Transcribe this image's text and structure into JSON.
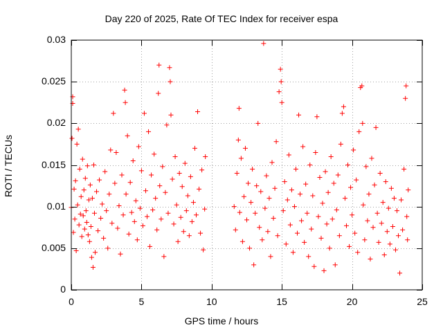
{
  "chart_data": {
    "type": "scatter",
    "title": "Day 220 of 2025, Rate Of TEC Index for receiver espa",
    "xlabel": "GPS time / hours",
    "ylabel": "ROTI / TECUs",
    "xlim": [
      0,
      25
    ],
    "ylim": [
      0,
      0.03
    ],
    "xticks": [
      0,
      5,
      10,
      15,
      20,
      25
    ],
    "xtick_labels": [
      "0",
      "5",
      "10",
      "15",
      "20",
      "25"
    ],
    "yticks": [
      0,
      0.005,
      0.01,
      0.015,
      0.02,
      0.025,
      0.03
    ],
    "ytick_labels": [
      "0",
      "0.005",
      "0.01",
      "0.015",
      "0.02",
      "0.025",
      "0.03"
    ],
    "grid": true,
    "marker": "+",
    "color": "#ff0000",
    "series": [
      {
        "name": "ROTI",
        "points": [
          [
            0.0,
            0.0099
          ],
          [
            0.05,
            0.0182
          ],
          [
            0.1,
            0.0232
          ],
          [
            0.1,
            0.0224
          ],
          [
            0.15,
            0.0069
          ],
          [
            0.2,
            0.0121
          ],
          [
            0.25,
            0.0085
          ],
          [
            0.3,
            0.0131
          ],
          [
            0.35,
            0.0047
          ],
          [
            0.4,
            0.0175
          ],
          [
            0.45,
            0.0102
          ],
          [
            0.5,
            0.0193
          ],
          [
            0.55,
            0.0078
          ],
          [
            0.6,
            0.0145
          ],
          [
            0.65,
            0.0091
          ],
          [
            0.7,
            0.0112
          ],
          [
            0.75,
            0.0064
          ],
          [
            0.8,
            0.0157
          ],
          [
            0.85,
            0.0089
          ],
          [
            0.9,
            0.012
          ],
          [
            0.95,
            0.0073
          ],
          [
            1.0,
            0.0134
          ],
          [
            1.05,
            0.0095
          ],
          [
            1.1,
            0.0081
          ],
          [
            1.15,
            0.0149
          ],
          [
            1.2,
            0.0066
          ],
          [
            1.25,
            0.0108
          ],
          [
            1.3,
            0.0058
          ],
          [
            1.35,
            0.0126
          ],
          [
            1.4,
            0.0076
          ],
          [
            1.45,
            0.0039
          ],
          [
            1.5,
            0.011
          ],
          [
            1.55,
            0.0027
          ],
          [
            1.6,
            0.015
          ],
          [
            1.65,
            0.0092
          ],
          [
            1.7,
            0.0045
          ],
          [
            1.8,
            0.0118
          ],
          [
            1.9,
            0.0071
          ],
          [
            2.0,
            0.0132
          ],
          [
            2.1,
            0.0086
          ],
          [
            2.2,
            0.0103
          ],
          [
            2.3,
            0.0062
          ],
          [
            2.4,
            0.0142
          ],
          [
            2.5,
            0.0095
          ],
          [
            2.6,
            0.005
          ],
          [
            2.7,
            0.0115
          ],
          [
            2.8,
            0.0168
          ],
          [
            2.9,
            0.008
          ],
          [
            3.0,
            0.0212
          ],
          [
            3.1,
            0.0128
          ],
          [
            3.2,
            0.0165
          ],
          [
            3.3,
            0.0074
          ],
          [
            3.4,
            0.0101
          ],
          [
            3.5,
            0.0043
          ],
          [
            3.6,
            0.0138
          ],
          [
            3.7,
            0.009
          ],
          [
            3.8,
            0.024
          ],
          [
            3.85,
            0.0225
          ],
          [
            3.9,
            0.0115
          ],
          [
            4.0,
            0.0185
          ],
          [
            4.1,
            0.0067
          ],
          [
            4.2,
            0.0129
          ],
          [
            4.3,
            0.0093
          ],
          [
            4.4,
            0.0155
          ],
          [
            4.5,
            0.0082
          ],
          [
            4.6,
            0.0107
          ],
          [
            4.7,
            0.006
          ],
          [
            4.8,
            0.0172
          ],
          [
            4.9,
            0.0098
          ],
          [
            5.0,
            0.0143
          ],
          [
            5.1,
            0.0077
          ],
          [
            5.2,
            0.0212
          ],
          [
            5.3,
            0.0119
          ],
          [
            5.4,
            0.0088
          ],
          [
            5.5,
            0.019
          ],
          [
            5.6,
            0.0052
          ],
          [
            5.7,
            0.0138
          ],
          [
            5.8,
            0.0096
          ],
          [
            5.9,
            0.0163
          ],
          [
            6.0,
            0.011
          ],
          [
            6.1,
            0.0072
          ],
          [
            6.2,
            0.0236
          ],
          [
            6.25,
            0.027
          ],
          [
            6.3,
            0.0125
          ],
          [
            6.4,
            0.0085
          ],
          [
            6.5,
            0.0148
          ],
          [
            6.6,
            0.004
          ],
          [
            6.7,
            0.0117
          ],
          [
            6.8,
            0.0198
          ],
          [
            6.9,
            0.0092
          ],
          [
            7.0,
            0.0267
          ],
          [
            7.05,
            0.025
          ],
          [
            7.1,
            0.021
          ],
          [
            7.2,
            0.0133
          ],
          [
            7.3,
            0.0079
          ],
          [
            7.4,
            0.016
          ],
          [
            7.5,
            0.0102
          ],
          [
            7.6,
            0.0058
          ],
          [
            7.7,
            0.014
          ],
          [
            7.8,
            0.0087
          ],
          [
            7.9,
            0.0124
          ],
          [
            8.0,
            0.007
          ],
          [
            8.1,
            0.0152
          ],
          [
            8.2,
            0.0095
          ],
          [
            8.3,
            0.0113
          ],
          [
            8.4,
            0.0065
          ],
          [
            8.5,
            0.0136
          ],
          [
            8.6,
            0.0082
          ],
          [
            8.7,
            0.0105
          ],
          [
            8.8,
            0.017
          ],
          [
            8.9,
            0.009
          ],
          [
            9.0,
            0.0214
          ],
          [
            9.1,
            0.0121
          ],
          [
            9.2,
            0.0068
          ],
          [
            9.3,
            0.0144
          ],
          [
            9.4,
            0.0048
          ],
          [
            9.5,
            0.0097
          ],
          [
            9.55,
            0.016
          ],
          [
            11.6,
            0.01
          ],
          [
            11.7,
            0.0072
          ],
          [
            11.8,
            0.014
          ],
          [
            11.9,
            0.018
          ],
          [
            11.95,
            0.0218
          ],
          [
            12.0,
            0.0093
          ],
          [
            12.1,
            0.0158
          ],
          [
            12.2,
            0.0058
          ],
          [
            12.3,
            0.0112
          ],
          [
            12.4,
            0.017
          ],
          [
            12.5,
            0.0084
          ],
          [
            12.6,
            0.0128
          ],
          [
            12.7,
            0.005
          ],
          [
            12.8,
            0.0105
          ],
          [
            12.9,
            0.0145
          ],
          [
            13.0,
            0.003
          ],
          [
            13.1,
            0.0092
          ],
          [
            13.2,
            0.0125
          ],
          [
            13.3,
            0.02
          ],
          [
            13.4,
            0.0075
          ],
          [
            13.5,
            0.0118
          ],
          [
            13.6,
            0.006
          ],
          [
            13.7,
            0.0296
          ],
          [
            13.8,
            0.0098
          ],
          [
            13.9,
            0.0137
          ],
          [
            14.0,
            0.007
          ],
          [
            14.1,
            0.011
          ],
          [
            14.2,
            0.004
          ],
          [
            14.3,
            0.0153
          ],
          [
            14.4,
            0.0086
          ],
          [
            14.5,
            0.0122
          ],
          [
            14.6,
            0.0178
          ],
          [
            14.7,
            0.0065
          ],
          [
            14.8,
            0.0238
          ],
          [
            14.9,
            0.0265
          ],
          [
            14.95,
            0.025
          ],
          [
            15.0,
            0.0225
          ],
          [
            15.1,
            0.0095
          ],
          [
            15.2,
            0.013
          ],
          [
            15.3,
            0.0055
          ],
          [
            15.4,
            0.0108
          ],
          [
            15.5,
            0.0162
          ],
          [
            15.6,
            0.0078
          ],
          [
            15.7,
            0.012
          ],
          [
            15.8,
            0.0045
          ],
          [
            15.9,
            0.01
          ],
          [
            16.0,
            0.0145
          ],
          [
            16.1,
            0.0068
          ],
          [
            16.2,
            0.021
          ],
          [
            16.3,
            0.0115
          ],
          [
            16.4,
            0.0083
          ],
          [
            16.5,
            0.0172
          ],
          [
            16.6,
            0.0057
          ],
          [
            16.7,
            0.0127
          ],
          [
            16.8,
            0.0092
          ],
          [
            16.9,
            0.004
          ],
          [
            17.0,
            0.015
          ],
          [
            17.1,
            0.0073
          ],
          [
            17.2,
            0.0113
          ],
          [
            17.3,
            0.0028
          ],
          [
            17.4,
            0.0165
          ],
          [
            17.5,
            0.0208
          ],
          [
            17.6,
            0.0088
          ],
          [
            17.7,
            0.0135
          ],
          [
            17.8,
            0.0062
          ],
          [
            17.9,
            0.0104
          ],
          [
            18.0,
            0.0023
          ],
          [
            18.1,
            0.0142
          ],
          [
            18.2,
            0.0079
          ],
          [
            18.3,
            0.0117
          ],
          [
            18.4,
            0.005
          ],
          [
            18.5,
            0.016
          ],
          [
            18.6,
            0.0085
          ],
          [
            18.7,
            0.0128
          ],
          [
            18.8,
            0.003
          ],
          [
            18.9,
            0.0096
          ],
          [
            19.0,
            0.0138
          ],
          [
            19.1,
            0.0065
          ],
          [
            19.2,
            0.0175
          ],
          [
            19.3,
            0.0212
          ],
          [
            19.4,
            0.022
          ],
          [
            19.5,
            0.011
          ],
          [
            19.6,
            0.0077
          ],
          [
            19.7,
            0.015
          ],
          [
            19.8,
            0.0052
          ],
          [
            19.9,
            0.0123
          ],
          [
            20.0,
            0.009
          ],
          [
            20.1,
            0.0168
          ],
          [
            20.2,
            0.0068
          ],
          [
            20.3,
            0.0132
          ],
          [
            20.4,
            0.0045
          ],
          [
            20.5,
            0.019
          ],
          [
            20.6,
            0.0243
          ],
          [
            20.7,
            0.0245
          ],
          [
            20.75,
            0.02
          ],
          [
            20.8,
            0.0102
          ],
          [
            20.9,
            0.006
          ],
          [
            21.0,
            0.0148
          ],
          [
            21.1,
            0.0083
          ],
          [
            21.2,
            0.0115
          ],
          [
            21.3,
            0.0037
          ],
          [
            21.4,
            0.0158
          ],
          [
            21.5,
            0.0075
          ],
          [
            21.6,
            0.0126
          ],
          [
            21.7,
            0.0195
          ],
          [
            21.8,
            0.0092
          ],
          [
            21.9,
            0.0057
          ],
          [
            22.0,
            0.014
          ],
          [
            22.1,
            0.008
          ],
          [
            22.2,
            0.0105
          ],
          [
            22.3,
            0.0042
          ],
          [
            22.4,
            0.013
          ],
          [
            22.5,
            0.007
          ],
          [
            22.6,
            0.0098
          ],
          [
            22.7,
            0.0055
          ],
          [
            22.8,
            0.0122
          ],
          [
            22.9,
            0.0076
          ],
          [
            23.0,
            0.011
          ],
          [
            23.1,
            0.0048
          ],
          [
            23.2,
            0.0095
          ],
          [
            23.3,
            0.0065
          ],
          [
            23.4,
            0.002
          ],
          [
            23.5,
            0.0108
          ],
          [
            23.6,
            0.0072
          ],
          [
            23.7,
            0.0145
          ],
          [
            23.8,
            0.023
          ],
          [
            23.85,
            0.0245
          ],
          [
            23.9,
            0.0088
          ],
          [
            23.95,
            0.006
          ],
          [
            24.0,
            0.012
          ]
        ]
      }
    ]
  }
}
